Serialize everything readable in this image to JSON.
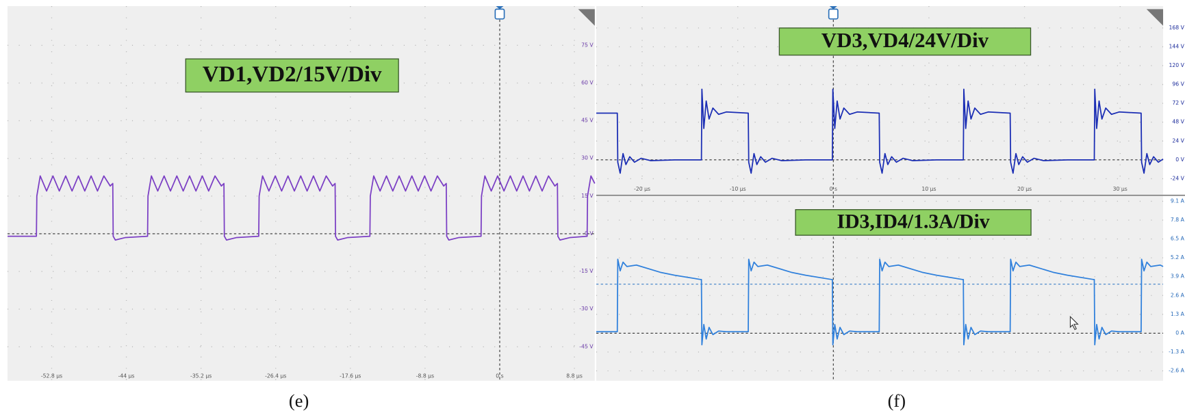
{
  "chart_data": [
    {
      "type": "line",
      "title": "VD1,VD2/15V/Div",
      "caption": "(e)",
      "x": [
        -58,
        -54.6,
        -54.55,
        -54.15,
        -53.4,
        -52.65,
        -51.9,
        -51.15,
        -50.4,
        -49.65,
        -48.9,
        -48.15,
        -47.4,
        -46.65,
        -45.9,
        -45.6,
        -45.55,
        -45.3,
        -44.1,
        -41.5,
        -41.45,
        -41.05,
        -40.3,
        -39.55,
        -38.8,
        -38.05,
        -37.3,
        -36.55,
        -35.8,
        -35.05,
        -34.3,
        -33.55,
        -32.8,
        -32.5,
        -32.45,
        -32.2,
        -31.0,
        -28.4,
        -28.35,
        -27.95,
        -27.2,
        -26.45,
        -25.7,
        -24.95,
        -24.2,
        -23.45,
        -22.7,
        -21.95,
        -21.2,
        -20.45,
        -19.7,
        -19.4,
        -19.35,
        -19.1,
        -17.9,
        -15.3,
        -15.25,
        -14.85,
        -14.1,
        -13.35,
        -12.6,
        -11.85,
        -11.1,
        -10.35,
        -9.6,
        -8.85,
        -8.1,
        -7.35,
        -6.6,
        -6.3,
        -6.25,
        -6.0,
        -4.8,
        -2.2,
        -2.15,
        -1.75,
        -1.0,
        -0.25,
        0.5,
        1.25,
        2.0,
        2.75,
        3.5,
        4.25,
        5.0,
        5.75,
        6.5,
        6.8,
        6.85,
        7.1,
        8.3,
        10.3,
        10.35,
        10.75,
        11.2
      ],
      "series": [
        {
          "color": "#7b3fc4",
          "values": [
            -1,
            -1,
            15,
            23,
            17,
            23,
            17,
            23,
            17,
            23,
            17,
            23,
            17,
            23,
            19,
            20,
            -1,
            -2.5,
            -1.5,
            -1,
            15,
            23,
            17,
            23,
            17,
            23,
            17,
            23,
            17,
            23,
            17,
            23,
            19,
            20,
            -1,
            -2.5,
            -1.5,
            -1,
            15,
            23,
            17,
            23,
            17,
            23,
            17,
            23,
            17,
            23,
            17,
            23,
            19,
            20,
            -1,
            -2.5,
            -1.5,
            -1,
            15,
            23,
            17,
            23,
            17,
            23,
            17,
            23,
            17,
            23,
            17,
            23,
            19,
            20,
            -1,
            -2.5,
            -1.5,
            -1,
            15,
            23,
            17,
            23,
            17,
            23,
            17,
            23,
            17,
            23,
            17,
            23,
            19,
            20,
            -1,
            -2.5,
            -1.5,
            -1,
            15,
            23,
            20
          ]
        }
      ],
      "xlim": [
        -58,
        11.2
      ],
      "ylim": [
        -58.5,
        90.6
      ],
      "xticks": [
        {
          "value": -52.8,
          "label": "-52.8 µs"
        },
        {
          "value": -44,
          "label": "-44 µs"
        },
        {
          "value": -35.2,
          "label": "-35.2 µs"
        },
        {
          "value": -26.4,
          "label": "-26.4 µs"
        },
        {
          "value": -17.6,
          "label": "-17.6 µs"
        },
        {
          "value": -8.8,
          "label": "-8.8 µs"
        },
        {
          "value": 0,
          "label": "0 s"
        },
        {
          "value": 8.8,
          "label": "8.8 µs"
        }
      ],
      "yticks": [
        {
          "value": 75,
          "label": "75 V"
        },
        {
          "value": 60,
          "label": "60 V"
        },
        {
          "value": 45,
          "label": "45 V"
        },
        {
          "value": 30,
          "label": "30 V"
        },
        {
          "value": 15,
          "label": "15 V"
        },
        {
          "value": 0,
          "label": "0 V"
        },
        {
          "value": -15,
          "label": "-15 V"
        },
        {
          "value": -30,
          "label": "-30 V"
        },
        {
          "value": -45,
          "label": "-45 V"
        }
      ]
    },
    {
      "type": "line",
      "title": "VD3,VD4/24V/Div",
      "caption": "(f)",
      "x": [
        -24.8,
        -22.6,
        -22.55,
        -22.3,
        -22.0,
        -21.7,
        -21.3,
        -20.8,
        -20.1,
        -19.1,
        -16.6,
        -13.85,
        -13.8,
        -13.75,
        -13.55,
        -13.3,
        -13.0,
        -12.6,
        -12.0,
        -11.2,
        -8.9,
        -8.85,
        -8.6,
        -8.3,
        -8.0,
        -7.6,
        -7.1,
        -6.4,
        -5.4,
        -2.9,
        -0.15,
        -0.1,
        -0.05,
        0.15,
        0.4,
        0.7,
        1.1,
        1.7,
        2.5,
        4.8,
        4.85,
        5.1,
        5.4,
        5.7,
        6.1,
        6.6,
        7.3,
        8.3,
        10.8,
        13.55,
        13.6,
        13.65,
        13.85,
        14.1,
        14.4,
        14.8,
        15.4,
        16.2,
        18.5,
        18.55,
        18.8,
        19.1,
        19.4,
        19.8,
        20.3,
        21.0,
        22.0,
        24.5,
        27.25,
        27.3,
        27.35,
        27.55,
        27.8,
        28.1,
        28.5,
        29.1,
        29.9,
        32.2,
        32.25,
        32.5,
        32.8,
        33.1,
        33.5,
        34.0,
        34.5
      ],
      "series": [
        {
          "color": "#1a2db4",
          "values": [
            59.5,
            59.5,
            -3,
            -17,
            8,
            -6,
            4,
            -3,
            2,
            -1,
            0,
            0,
            0,
            90,
            40,
            75,
            52,
            66,
            58,
            61,
            59.5,
            -3,
            -17,
            8,
            -6,
            4,
            -3,
            2,
            -1,
            0,
            0,
            0,
            90,
            40,
            75,
            52,
            66,
            58,
            61,
            59.5,
            -3,
            -17,
            8,
            -6,
            4,
            -3,
            2,
            -1,
            0,
            0,
            0,
            90,
            40,
            75,
            52,
            66,
            58,
            61,
            59.5,
            -3,
            -17,
            8,
            -6,
            4,
            -3,
            2,
            -1,
            0,
            0,
            0,
            90,
            40,
            75,
            52,
            66,
            58,
            61,
            59.5,
            -3,
            -17,
            8,
            -6,
            4,
            -3,
            1
          ]
        }
      ],
      "xlim": [
        -24.8,
        34.5
      ],
      "ylim": [
        -44.2,
        195.8
      ],
      "xticks": [
        {
          "value": -20,
          "label": "-20 µs"
        },
        {
          "value": -10,
          "label": "-10 µs"
        },
        {
          "value": 0,
          "label": "0 s"
        },
        {
          "value": 10,
          "label": "10 µs"
        },
        {
          "value": 20,
          "label": "20 µs"
        },
        {
          "value": 30,
          "label": "30 µs"
        }
      ],
      "yticks": [
        {
          "value": 168,
          "label": "168 V"
        },
        {
          "value": 144,
          "label": "144 V"
        },
        {
          "value": 120,
          "label": "120 V"
        },
        {
          "value": 96,
          "label": "96 V"
        },
        {
          "value": 72,
          "label": "72 V"
        },
        {
          "value": 48,
          "label": "48 V"
        },
        {
          "value": 24,
          "label": "24 V"
        },
        {
          "value": 0,
          "label": "0 V"
        },
        {
          "value": -24,
          "label": "-24 V"
        }
      ]
    },
    {
      "type": "line",
      "title": "ID3,ID4/1.3A/Div",
      "x": [
        -24.8,
        -22.6,
        -22.55,
        -22.3,
        -22.0,
        -21.6,
        -20.6,
        -18.1,
        -16.6,
        -13.85,
        -13.8,
        -13.75,
        -13.55,
        -13.3,
        -13.0,
        -12.6,
        -12.0,
        -11.2,
        -8.9,
        -8.85,
        -8.6,
        -8.3,
        -7.9,
        -6.9,
        -4.4,
        -2.9,
        -0.15,
        -0.1,
        -0.05,
        0.15,
        0.4,
        0.7,
        1.1,
        1.7,
        2.5,
        4.8,
        4.85,
        5.1,
        5.4,
        5.8,
        6.8,
        9.3,
        10.8,
        13.55,
        13.6,
        13.65,
        13.85,
        14.1,
        14.4,
        14.8,
        15.4,
        16.2,
        18.5,
        18.55,
        18.8,
        19.1,
        19.5,
        20.5,
        23.0,
        24.5,
        27.25,
        27.3,
        27.35,
        27.55,
        27.8,
        28.1,
        28.5,
        29.1,
        29.9,
        32.2,
        32.25,
        32.5,
        32.8,
        33.2,
        34.2,
        34.5
      ],
      "series": [
        {
          "color": "#2f80dc",
          "values": [
            0.1,
            0.1,
            5.1,
            4.3,
            4.9,
            4.6,
            4.7,
            4.2,
            4.0,
            3.7,
            3.7,
            -0.8,
            0.6,
            -0.4,
            0.4,
            -0.1,
            0.15,
            0.1,
            0.1,
            5.1,
            4.3,
            4.9,
            4.6,
            4.7,
            4.2,
            4.0,
            3.7,
            3.7,
            -0.8,
            0.6,
            -0.4,
            0.4,
            -0.1,
            0.15,
            0.1,
            0.1,
            5.1,
            4.3,
            4.9,
            4.6,
            4.7,
            4.2,
            4.0,
            3.7,
            3.7,
            -0.8,
            0.6,
            -0.4,
            0.4,
            -0.1,
            0.15,
            0.1,
            0.1,
            5.1,
            4.3,
            4.9,
            4.6,
            4.7,
            4.2,
            4.0,
            3.7,
            3.7,
            -0.8,
            0.6,
            -0.4,
            0.4,
            -0.1,
            0.15,
            0.1,
            0.1,
            5.1,
            4.3,
            4.9,
            4.6,
            4.7,
            4.6
          ]
        }
      ],
      "xlim": [
        -24.8,
        34.5
      ],
      "ylim": [
        -3.28,
        9.46
      ],
      "yticks": [
        {
          "value": 9.1,
          "label": "9.1 A"
        },
        {
          "value": 7.8,
          "label": "7.8 A"
        },
        {
          "value": 6.5,
          "label": "6.5 A"
        },
        {
          "value": 5.2,
          "label": "5.2 A"
        },
        {
          "value": 3.9,
          "label": "3.9 A"
        },
        {
          "value": 2.6,
          "label": "2.6 A"
        },
        {
          "value": 1.3,
          "label": "1.3 A"
        },
        {
          "value": 0,
          "label": "0 A"
        },
        {
          "value": -1.3,
          "label": "-1.3 A"
        },
        {
          "value": -2.6,
          "label": "-2.6 A"
        }
      ]
    }
  ]
}
